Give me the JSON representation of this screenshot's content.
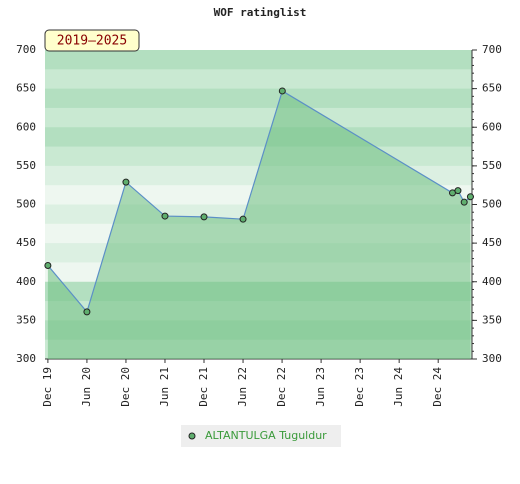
{
  "chart_data": {
    "type": "area",
    "title": "WOF ratinglist",
    "badge": "2019–2025",
    "x": [
      2019.917,
      2020.417,
      2020.917,
      2021.417,
      2021.917,
      2022.417,
      2022.92,
      2025.1,
      2025.17,
      2025.25,
      2025.33
    ],
    "series": [
      {
        "name": "ALTANTULGA Tuguldur",
        "color": "#5b8fc7",
        "fill": "#6fbf82",
        "values": [
          421,
          361,
          529,
          485,
          484,
          481,
          647,
          515,
          518,
          503,
          510
        ]
      }
    ],
    "xlim": [
      2019.88,
      2025.35
    ],
    "xticks": [
      {
        "value": 2019.917,
        "label": "Dec 19"
      },
      {
        "value": 2020.417,
        "label": "Jun 20"
      },
      {
        "value": 2020.917,
        "label": "Dec 20"
      },
      {
        "value": 2021.417,
        "label": "Jun 21"
      },
      {
        "value": 2021.917,
        "label": "Dec 21"
      },
      {
        "value": 2022.417,
        "label": "Jun 22"
      },
      {
        "value": 2022.917,
        "label": "Dec 22"
      },
      {
        "value": 2023.417,
        "label": "Jun 23"
      },
      {
        "value": 2023.917,
        "label": "Dec 23"
      },
      {
        "value": 2024.417,
        "label": "Jun 24"
      },
      {
        "value": 2024.917,
        "label": "Dec 24"
      }
    ],
    "ylim": [
      300,
      700
    ],
    "yticks": [
      300,
      350,
      400,
      450,
      500,
      550,
      600,
      650,
      700
    ]
  }
}
